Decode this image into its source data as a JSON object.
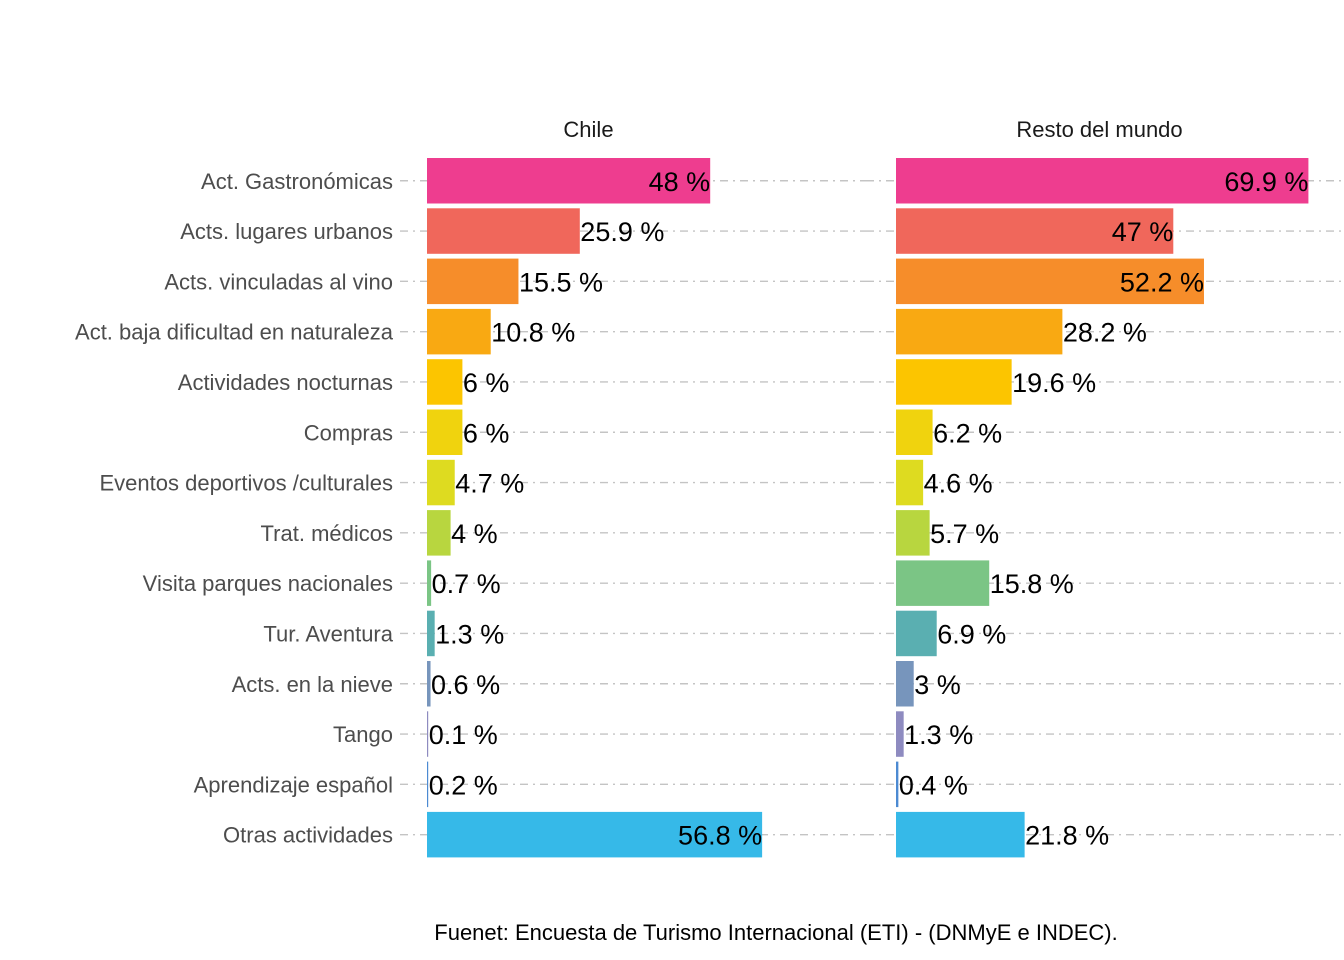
{
  "chart_data": {
    "type": "bar",
    "orientation": "horizontal",
    "categories": [
      "Act. Gastronómicas",
      "Acts. lugares urbanos",
      "Acts. vinculadas al vino",
      "Act. baja dificultad en naturaleza",
      "Actividades nocturnas",
      "Compras",
      "Eventos deportivos /culturales",
      "Trat. médicos",
      "Visita parques nacionales",
      "Tur. Aventura",
      "Acts. en la nieve",
      "Tango",
      "Aprendizaje español",
      "Otras actividades"
    ],
    "bar_colors": [
      "#EE3D8F",
      "#F0675B",
      "#F68D2A",
      "#F9A912",
      "#FCC500",
      "#F0D30E",
      "#DEDB20",
      "#B8D63F",
      "#7BC585",
      "#5AAFB1",
      "#7795BC",
      "#8E8BC0",
      "#4C8AD2",
      "#36B9E8"
    ],
    "xlim": [
      0,
      72
    ],
    "grid": "dotdash horizontal",
    "facets": [
      {
        "title": "Chile",
        "values": [
          48,
          25.9,
          15.5,
          10.8,
          6,
          6,
          4.7,
          4,
          0.7,
          1.3,
          0.6,
          0.1,
          0.2,
          56.8
        ],
        "labels": [
          "48 %",
          "25.9 %",
          "15.5 %",
          "10.8 %",
          "6 %",
          "6 %",
          "4.7 %",
          "4 %",
          "0.7 %",
          "1.3 %",
          "0.6 %",
          "0.1 %",
          "0.2 %",
          "56.8 %"
        ]
      },
      {
        "title": "Resto del mundo",
        "values": [
          69.9,
          47,
          52.2,
          28.2,
          19.6,
          6.2,
          4.6,
          5.7,
          15.8,
          6.9,
          3,
          1.3,
          0.4,
          21.8
        ],
        "labels": [
          "69.9 %",
          "47 %",
          "52.2 %",
          "28.2 %",
          "19.6 %",
          "6.2 %",
          "4.6 %",
          "5.7 %",
          "15.8 %",
          "6.9 %",
          "3 %",
          "1.3 %",
          "0.4 %",
          "21.8 %"
        ]
      }
    ],
    "caption": "Fuenet: Encuesta de Turismo Internacional (ETI) - (DNMyE e INDEC)."
  }
}
